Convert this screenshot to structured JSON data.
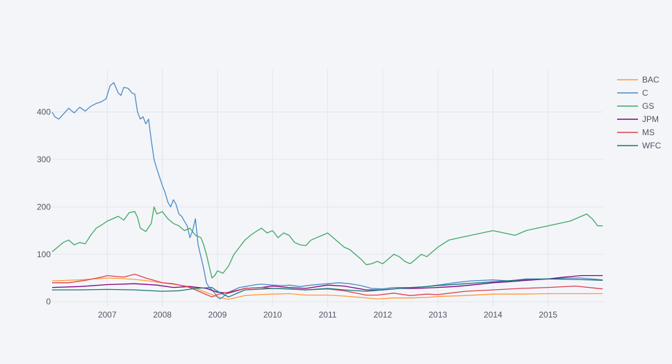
{
  "chart_data": {
    "type": "line",
    "title": "",
    "xlabel": "",
    "ylabel": "",
    "xlim": [
      2006.0,
      2016.0
    ],
    "ylim": [
      -10,
      490
    ],
    "grid": true,
    "legend_position": "top-right",
    "x_ticks": [
      {
        "label": "2007",
        "value": 2007
      },
      {
        "label": "2008",
        "value": 2008
      },
      {
        "label": "2009",
        "value": 2009
      },
      {
        "label": "2010",
        "value": 2010
      },
      {
        "label": "2011",
        "value": 2011
      },
      {
        "label": "2012",
        "value": 2012
      },
      {
        "label": "2013",
        "value": 2013
      },
      {
        "label": "2014",
        "value": 2014
      },
      {
        "label": "2015",
        "value": 2015
      }
    ],
    "y_ticks": [
      {
        "label": "0",
        "value": 0
      },
      {
        "label": "100",
        "value": 100
      },
      {
        "label": "200",
        "value": 200
      },
      {
        "label": "300",
        "value": 300
      },
      {
        "label": "400",
        "value": 400
      }
    ],
    "series": [
      {
        "name": "BAC",
        "color": "#ff9933",
        "x": [
          2006.0,
          2006.25,
          2006.5,
          2006.75,
          2007.0,
          2007.25,
          2007.5,
          2007.75,
          2008.0,
          2008.25,
          2008.5,
          2008.75,
          2009.0,
          2009.2,
          2009.5,
          2009.75,
          2010.0,
          2010.3,
          2010.6,
          2011.0,
          2011.3,
          2011.6,
          2011.9,
          2012.2,
          2012.5,
          2012.8,
          2013.0,
          2013.5,
          2014.0,
          2014.5,
          2015.0,
          2015.5,
          2015.99
        ],
        "y": [
          44,
          45,
          46,
          48,
          50,
          49,
          47,
          44,
          40,
          36,
          32,
          22,
          10,
          5,
          13,
          15,
          16,
          17,
          14,
          14,
          12,
          9,
          6,
          8,
          8,
          9,
          11,
          13,
          16,
          16,
          17,
          17,
          17
        ]
      },
      {
        "name": "C",
        "color": "#4a89c6",
        "x": [
          2006.0,
          2006.05,
          2006.12,
          2006.2,
          2006.3,
          2006.4,
          2006.5,
          2006.6,
          2006.7,
          2006.8,
          2006.9,
          2006.98,
          2007.05,
          2007.12,
          2007.2,
          2007.25,
          2007.3,
          2007.38,
          2007.45,
          2007.5,
          2007.55,
          2007.6,
          2007.65,
          2007.7,
          2007.75,
          2007.8,
          2007.85,
          2007.9,
          2008.0,
          2008.05,
          2008.1,
          2008.15,
          2008.2,
          2008.25,
          2008.3,
          2008.35,
          2008.4,
          2008.45,
          2008.5,
          2008.55,
          2008.6,
          2008.65,
          2008.7,
          2008.75,
          2008.8,
          2008.85,
          2008.9,
          2008.95,
          2009.0,
          2009.05,
          2009.1,
          2009.15,
          2009.2,
          2009.3,
          2009.4,
          2009.5,
          2009.6,
          2009.7,
          2009.8,
          2010.0,
          2010.2,
          2010.3,
          2010.5,
          2010.7,
          2011.0,
          2011.2,
          2011.4,
          2011.6,
          2011.8,
          2012.0,
          2012.2,
          2012.5,
          2012.8,
          2013.0,
          2013.3,
          2013.6,
          2014.0,
          2014.3,
          2014.6,
          2015.0,
          2015.3,
          2015.6,
          2015.99
        ],
        "y": [
          400,
          390,
          385,
          395,
          408,
          398,
          410,
          402,
          412,
          418,
          422,
          428,
          455,
          462,
          440,
          435,
          452,
          450,
          440,
          438,
          400,
          385,
          390,
          375,
          385,
          340,
          300,
          280,
          245,
          230,
          210,
          200,
          215,
          205,
          185,
          180,
          170,
          160,
          135,
          150,
          175,
          120,
          95,
          70,
          40,
          30,
          25,
          18,
          10,
          6,
          10,
          15,
          20,
          25,
          30,
          32,
          34,
          36,
          37,
          35,
          34,
          35,
          32,
          35,
          38,
          40,
          38,
          34,
          28,
          27,
          30,
          30,
          32,
          35,
          40,
          44,
          46,
          44,
          48,
          48,
          50,
          50,
          46
        ]
      },
      {
        "name": "GS",
        "color": "#3da862",
        "x": [
          2006.0,
          2006.1,
          2006.2,
          2006.3,
          2006.4,
          2006.5,
          2006.6,
          2006.7,
          2006.8,
          2006.9,
          2007.0,
          2007.1,
          2007.2,
          2007.3,
          2007.4,
          2007.5,
          2007.55,
          2007.6,
          2007.7,
          2007.8,
          2007.85,
          2007.9,
          2008.0,
          2008.1,
          2008.2,
          2008.3,
          2008.4,
          2008.5,
          2008.6,
          2008.7,
          2008.75,
          2008.8,
          2008.85,
          2008.9,
          2008.95,
          2009.0,
          2009.1,
          2009.2,
          2009.3,
          2009.4,
          2009.5,
          2009.6,
          2009.7,
          2009.8,
          2009.9,
          2010.0,
          2010.1,
          2010.2,
          2010.3,
          2010.4,
          2010.5,
          2010.6,
          2010.7,
          2010.8,
          2010.9,
          2011.0,
          2011.1,
          2011.2,
          2011.3,
          2011.4,
          2011.5,
          2011.6,
          2011.7,
          2011.8,
          2011.9,
          2012.0,
          2012.1,
          2012.2,
          2012.3,
          2012.4,
          2012.5,
          2012.6,
          2012.7,
          2012.8,
          2012.9,
          2013.0,
          2013.2,
          2013.4,
          2013.6,
          2013.8,
          2014.0,
          2014.2,
          2014.4,
          2014.6,
          2014.8,
          2015.0,
          2015.2,
          2015.4,
          2015.5,
          2015.6,
          2015.7,
          2015.8,
          2015.9,
          2015.99
        ],
        "y": [
          105,
          115,
          125,
          130,
          120,
          125,
          122,
          140,
          155,
          162,
          170,
          175,
          180,
          172,
          188,
          190,
          178,
          155,
          148,
          165,
          200,
          185,
          190,
          175,
          165,
          160,
          150,
          155,
          140,
          135,
          120,
          100,
          75,
          50,
          55,
          65,
          60,
          75,
          100,
          115,
          130,
          140,
          148,
          155,
          145,
          150,
          135,
          145,
          140,
          125,
          120,
          118,
          130,
          135,
          140,
          145,
          135,
          125,
          115,
          110,
          100,
          90,
          78,
          80,
          85,
          80,
          90,
          100,
          95,
          85,
          80,
          90,
          100,
          95,
          105,
          115,
          130,
          135,
          140,
          145,
          150,
          145,
          140,
          150,
          155,
          160,
          165,
          170,
          175,
          180,
          185,
          175,
          160,
          160
        ]
      },
      {
        "name": "JPM",
        "color": "#800080",
        "x": [
          2006.0,
          2006.5,
          2007.0,
          2007.5,
          2007.9,
          2008.2,
          2008.5,
          2008.8,
          2009.0,
          2009.2,
          2009.5,
          2009.8,
          2010.0,
          2010.3,
          2010.6,
          2011.0,
          2011.3,
          2011.7,
          2012.0,
          2012.3,
          2012.6,
          2013.0,
          2013.3,
          2013.6,
          2014.0,
          2014.3,
          2014.6,
          2015.0,
          2015.3,
          2015.6,
          2015.99
        ],
        "y": [
          30,
          32,
          36,
          38,
          35,
          30,
          32,
          28,
          20,
          18,
          28,
          30,
          33,
          30,
          28,
          35,
          33,
          25,
          25,
          28,
          28,
          30,
          32,
          35,
          40,
          42,
          45,
          48,
          52,
          55,
          55
        ]
      },
      {
        "name": "MS",
        "color": "#db4052",
        "x": [
          2006.0,
          2006.3,
          2006.6,
          2006.9,
          2007.0,
          2007.3,
          2007.5,
          2007.7,
          2007.85,
          2008.0,
          2008.2,
          2008.5,
          2008.8,
          2008.9,
          2009.0,
          2009.2,
          2009.5,
          2009.8,
          2010.0,
          2010.3,
          2010.6,
          2011.0,
          2011.3,
          2011.7,
          2011.9,
          2012.2,
          2012.5,
          2012.8,
          2013.0,
          2013.5,
          2014.0,
          2014.5,
          2015.0,
          2015.5,
          2015.99
        ],
        "y": [
          40,
          40,
          45,
          52,
          55,
          52,
          58,
          50,
          45,
          40,
          38,
          30,
          15,
          10,
          15,
          20,
          28,
          30,
          28,
          27,
          25,
          27,
          23,
          14,
          14,
          18,
          13,
          16,
          15,
          22,
          25,
          28,
          30,
          33,
          27
        ]
      },
      {
        "name": "WFC",
        "color": "#167575",
        "x": [
          2006.0,
          2006.5,
          2007.0,
          2007.5,
          2008.0,
          2008.3,
          2008.6,
          2008.9,
          2009.0,
          2009.2,
          2009.5,
          2010.0,
          2010.3,
          2010.6,
          2011.0,
          2011.3,
          2011.7,
          2012.0,
          2012.3,
          2012.6,
          2013.0,
          2013.5,
          2014.0,
          2014.5,
          2015.0,
          2015.5,
          2015.99
        ],
        "y": [
          25,
          25,
          26,
          25,
          22,
          23,
          28,
          30,
          22,
          10,
          25,
          28,
          27,
          25,
          28,
          25,
          22,
          25,
          28,
          30,
          34,
          38,
          42,
          46,
          48,
          47,
          45
        ]
      }
    ]
  }
}
